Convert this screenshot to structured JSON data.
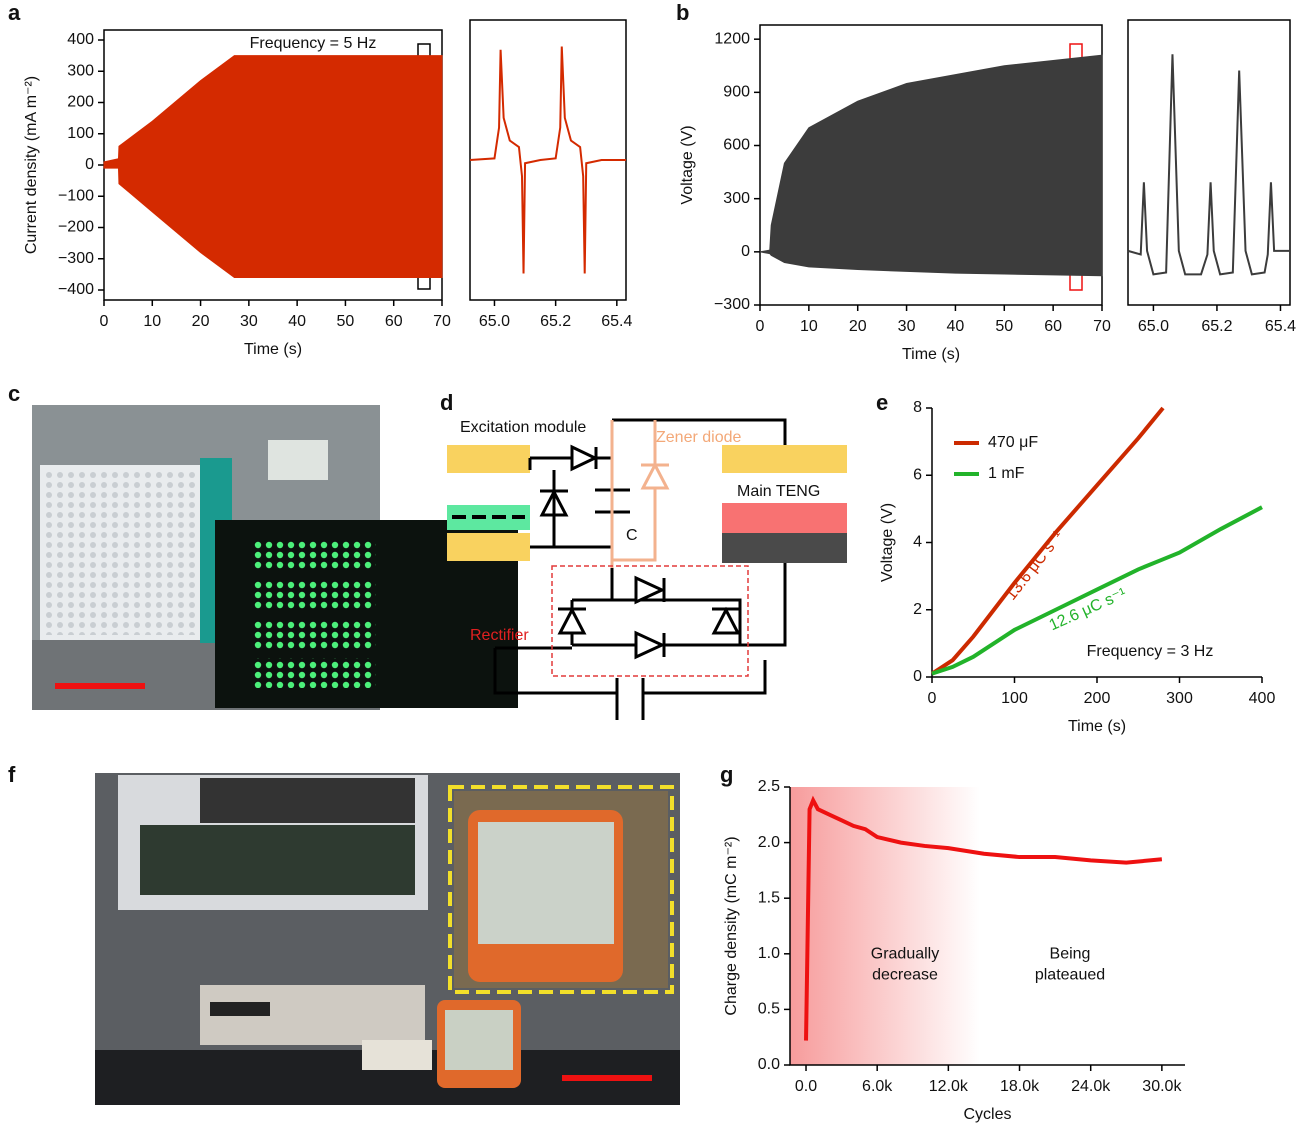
{
  "panels": [
    "a",
    "b",
    "c",
    "d",
    "e",
    "f",
    "g"
  ],
  "diagram": {
    "excitation": "Excitation module",
    "zener": "Zener diode",
    "teng": "Main TENG",
    "capacitor": "C",
    "rectifier": "Rectifier"
  },
  "chart_data": [
    {
      "type": "band",
      "color": "#d42a00",
      "box": true,
      "xlabel": "Time (s)",
      "ylabel": "Current density (mA m⁻²)",
      "annotations": [
        "Frequency = 5 Hz"
      ],
      "x": [
        0,
        3,
        3.1,
        10,
        20,
        27,
        70
      ],
      "upper": [
        10,
        20,
        60,
        140,
        270,
        350,
        350
      ],
      "lower": [
        -10,
        -10,
        -60,
        -150,
        -280,
        -360,
        -360
      ],
      "xlim": [
        0,
        70
      ],
      "xticks": [
        0,
        10,
        20,
        30,
        40,
        50,
        60,
        70
      ],
      "ylim": [
        -432,
        432
      ],
      "yticks": [
        {
          "value": -400,
          "label": "−400"
        },
        {
          "value": -300,
          "label": "−300"
        },
        {
          "value": -200,
          "label": "−200"
        },
        {
          "value": -100,
          "label": "−100"
        },
        0,
        100,
        200,
        300,
        400
      ]
    },
    {
      "type": "line",
      "color": "#d42a00",
      "box": true,
      "x": [
        64.92,
        65.0,
        65.015,
        65.02,
        65.03,
        65.05,
        65.08,
        65.09,
        65.095,
        65.1,
        65.15,
        65.2,
        65.215,
        65.22,
        65.23,
        65.25,
        65.28,
        65.29,
        65.295,
        65.3,
        65.35,
        65.43
      ],
      "values": [
        0,
        5,
        100,
        340,
        130,
        60,
        40,
        -50,
        -350,
        -10,
        0,
        5,
        100,
        350,
        130,
        60,
        40,
        -50,
        -350,
        -10,
        0,
        0
      ],
      "xlim": [
        64.92,
        65.43
      ],
      "xticks": [
        {
          "value": 65,
          "label": "65.0"
        },
        65.2,
        65.4
      ],
      "ylim": [
        -432,
        432
      ]
    },
    {
      "type": "band",
      "color": "#3c3c3c",
      "box": true,
      "xlabel": "Time (s)",
      "ylabel": "Voltage (V)",
      "x": [
        0,
        2,
        2.3,
        5,
        10,
        20,
        30,
        40,
        50,
        60,
        70
      ],
      "upper": [
        0,
        10,
        150,
        500,
        700,
        850,
        950,
        1000,
        1050,
        1080,
        1110
      ],
      "lower": [
        0,
        -10,
        -20,
        -60,
        -85,
        -100,
        -110,
        -120,
        -125,
        -130,
        -135
      ],
      "xlim": [
        0,
        70
      ],
      "xticks": [
        0,
        10,
        20,
        30,
        40,
        50,
        60,
        70
      ],
      "ylim": [
        -300,
        1280
      ],
      "yticks": [
        {
          "value": -300,
          "label": "−300"
        },
        0,
        300,
        600,
        900,
        1200
      ]
    },
    {
      "type": "line",
      "color": "#3c3c3c",
      "box": true,
      "x": [
        64.92,
        64.96,
        64.97,
        64.98,
        65.0,
        65.04,
        65.06,
        65.08,
        65.1,
        65.15,
        65.17,
        65.18,
        65.19,
        65.21,
        65.25,
        65.27,
        65.29,
        65.31,
        65.35,
        65.36,
        65.37,
        65.38,
        65.43
      ],
      "values": [
        0,
        -20,
        380,
        0,
        -130,
        -120,
        1090,
        0,
        -130,
        -130,
        -20,
        380,
        0,
        -130,
        -120,
        1000,
        0,
        -130,
        -120,
        -20,
        380,
        0,
        0
      ],
      "xlim": [
        64.92,
        65.43
      ],
      "xticks": [
        {
          "value": 65,
          "label": "65.0"
        },
        65.2,
        65.4
      ],
      "ylim": [
        -300,
        1280
      ]
    },
    {
      "type": "line",
      "box": false,
      "xlabel": "Time (s)",
      "ylabel": "Voltage (V)",
      "legend": "upper left",
      "annotations": [
        "13.6 μC s⁻¹",
        "12.6 μC s⁻¹",
        "Frequency = 3 Hz"
      ],
      "x": [
        0,
        25,
        50,
        100,
        150,
        200,
        250,
        280,
        300,
        350,
        400
      ],
      "series": [
        {
          "name": "470 μF",
          "color": "#cc2a00",
          "values": [
            0.1,
            0.5,
            1.2,
            2.8,
            4.3,
            5.7,
            7.1,
            8,
            null,
            null,
            null
          ]
        },
        {
          "name": "1 mF",
          "color": "#22b32a",
          "values": [
            0.1,
            0.3,
            0.6,
            1.4,
            2.0,
            2.6,
            3.2,
            3.5,
            3.7,
            4.4,
            5.05
          ]
        }
      ],
      "xlim": [
        0,
        400
      ],
      "xticks": [
        0,
        100,
        200,
        300,
        400
      ],
      "ylim": [
        0,
        8
      ],
      "yticks": [
        0,
        2,
        4,
        6,
        8
      ]
    },
    {
      "type": "line",
      "color": "#ee1111",
      "box": false,
      "xlabel": "Cycles",
      "ylabel": "Charge density (mC m⁻²)",
      "annotations": [
        [
          "Gradually",
          "decrease"
        ],
        [
          "Being",
          "plateaued"
        ]
      ],
      "x": [
        0,
        300,
        600,
        1000,
        2000,
        3000,
        4000,
        5000,
        6000,
        8000,
        10000,
        12000,
        15000,
        18000,
        21000,
        24000,
        27000,
        30000
      ],
      "values": [
        0.22,
        2.3,
        2.38,
        2.3,
        2.25,
        2.2,
        2.15,
        2.12,
        2.05,
        2.0,
        1.97,
        1.95,
        1.9,
        1.87,
        1.87,
        1.84,
        1.82,
        1.85
      ],
      "xlim": [
        -1350,
        31950
      ],
      "xticks": [
        {
          "value": 0,
          "label": "0.0"
        },
        {
          "value": 6000,
          "label": "6.0k"
        },
        {
          "value": 12000,
          "label": "12.0k"
        },
        {
          "value": 18000,
          "label": "18.0k"
        },
        {
          "value": 24000,
          "label": "24.0k"
        },
        {
          "value": 30000,
          "label": "30.0k"
        }
      ],
      "ylim": [
        0,
        2.5
      ],
      "yticks": [
        {
          "value": 0,
          "label": "0.0"
        },
        0.5,
        {
          "value": 1,
          "label": "1.0"
        },
        1.5,
        {
          "value": 2,
          "label": "2.0"
        },
        2.5
      ]
    }
  ]
}
